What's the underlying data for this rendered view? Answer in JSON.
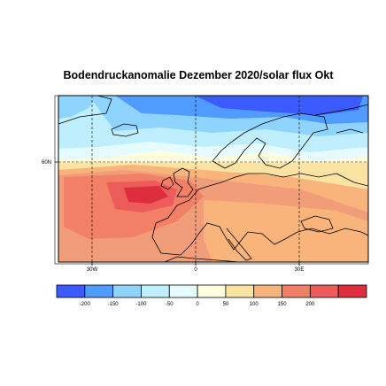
{
  "title": "Bodendruckanomalie Dezember 2020/solar flux Okt",
  "map": {
    "region": "North Atlantic / Europe",
    "lat_tick_labels": [
      {
        "label": "60N",
        "lat": 60
      }
    ],
    "lon_tick_labels": [
      {
        "label": "30W",
        "lon": -30
      },
      {
        "label": "0",
        "lon": 0
      },
      {
        "label": "30E",
        "lon": 30
      }
    ],
    "gridlines": "dashed",
    "grid_lons": [
      -30,
      0,
      30
    ],
    "grid_lats": [
      60
    ],
    "anomaly_pattern": {
      "north": "negative (blue), strongest over Scandinavia and the Norwegian Sea",
      "south": "positive (red), strongest west of Ireland / Bay of Biscay"
    }
  },
  "colorbar": {
    "tick_labels": [
      "-200",
      "-150",
      "-100",
      "-50",
      "0",
      "50",
      "100",
      "150",
      "200"
    ],
    "colors": [
      "#3b5bff",
      "#4f9bff",
      "#8fd3ff",
      "#bfefff",
      "#e6fbff",
      "#ffffe0",
      "#fbe3a3",
      "#f8b47a",
      "#f28066",
      "#ee5b5b",
      "#dc2e3c"
    ]
  }
}
